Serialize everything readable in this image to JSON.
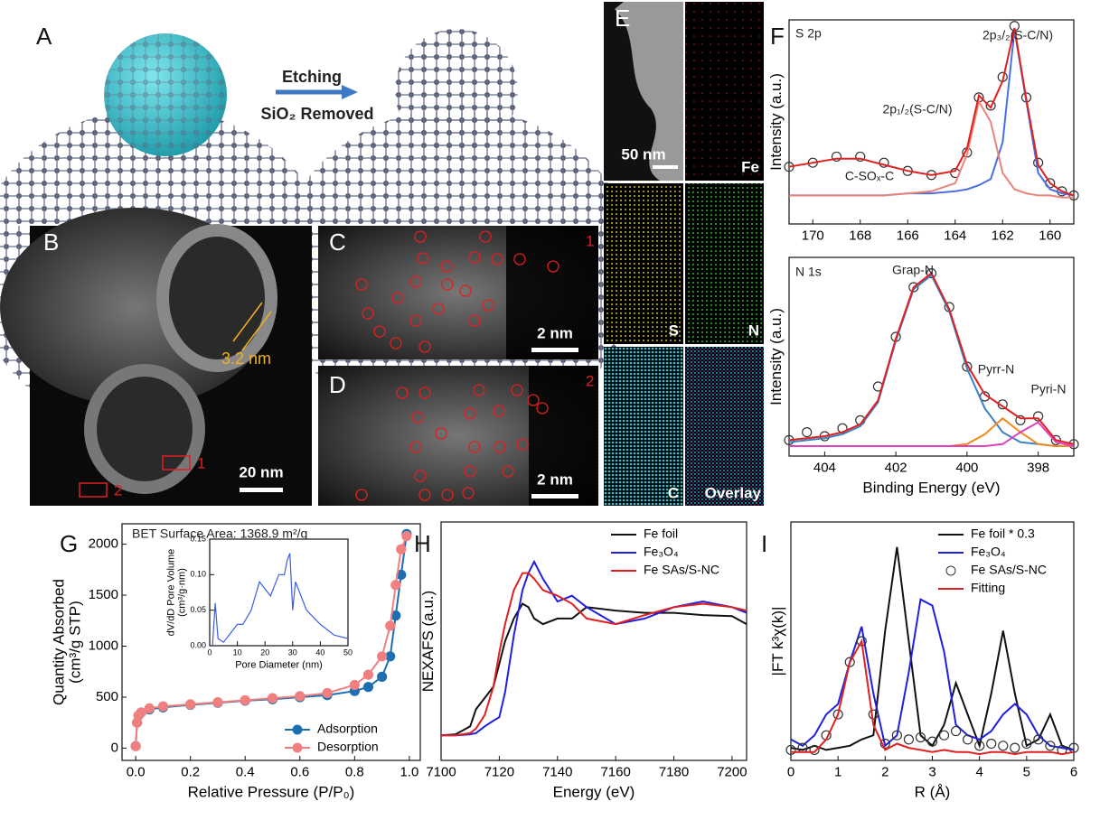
{
  "images": {
    "A": {
      "label": "A",
      "etching": "Etching",
      "removed": "SiO₂ Removed"
    },
    "B": {
      "label": "B",
      "spacing": "3.2 nm",
      "scale": "20 nm",
      "region1": "1",
      "region2": "2"
    },
    "C": {
      "label": "C",
      "region": "1",
      "scale": "2 nm"
    },
    "D": {
      "label": "D",
      "region": "2",
      "scale": "2 nm"
    },
    "E": {
      "label": "E",
      "scale": "50 nm",
      "maps": [
        "Fe",
        "S",
        "N",
        "C",
        "Overlay"
      ]
    }
  },
  "chart_data": [
    {
      "type": "line",
      "panel": "F",
      "ylabel": "Intensity (a.u.)",
      "annotations": [
        "S 2p",
        "2p₃/₂(S-C/N)",
        "2p₁/₂(S-C/N)",
        "C-SOₓ-C"
      ],
      "xlim": [
        171,
        159
      ],
      "xticks": [
        170,
        168,
        166,
        164,
        162,
        160
      ],
      "ylim": [
        0,
        100
      ],
      "x": [
        171,
        170,
        169,
        168,
        167,
        166,
        165,
        164,
        163.5,
        163,
        162.5,
        162,
        161.5,
        161,
        160.5,
        160,
        159.5,
        159
      ],
      "series": [
        {
          "color": "#333333",
          "marker": "open",
          "line": false,
          "values": [
            28,
            30,
            33,
            33,
            30,
            26,
            24,
            25,
            35,
            62,
            58,
            72,
            97,
            62,
            30,
            20,
            16,
            14
          ]
        },
        {
          "color": "#4a6fe3",
          "marker": "none",
          "line": true,
          "values": [
            14,
            14,
            14,
            14,
            14,
            15,
            15,
            16,
            17,
            19,
            22,
            40,
            95,
            60,
            25,
            17,
            15,
            14
          ]
        },
        {
          "color": "#e8857a",
          "marker": "none",
          "line": true,
          "values": [
            14,
            14,
            14,
            14,
            14,
            15,
            16,
            20,
            34,
            60,
            50,
            25,
            17,
            15,
            14,
            14,
            13,
            13
          ]
        },
        {
          "color": "#e02020",
          "marker": "none",
          "line": true,
          "values": [
            28,
            30,
            32,
            32,
            29,
            26,
            24,
            26,
            37,
            63,
            57,
            70,
            96,
            61,
            29,
            20,
            16,
            14
          ]
        }
      ]
    },
    {
      "type": "line",
      "xlabel": "Binding Energy (eV)",
      "ylabel": "Intensity (a.u.)",
      "annotations": [
        "N 1s",
        "Grap-N",
        "Pyrr-N",
        "Pyri-N"
      ],
      "xlim": [
        405,
        397
      ],
      "xticks": [
        404,
        402,
        400,
        398
      ],
      "ylim": [
        0,
        100
      ],
      "x": [
        405,
        404.5,
        404,
        403.5,
        403,
        402.5,
        402,
        401.5,
        401,
        400.5,
        400,
        399.5,
        399,
        398.5,
        398,
        397.5,
        397
      ],
      "series": [
        {
          "color": "#333333",
          "marker": "open",
          "line": false,
          "values": [
            8,
            12,
            10,
            14,
            18,
            35,
            60,
            85,
            92,
            75,
            45,
            30,
            26,
            18,
            20,
            8,
            6
          ]
        },
        {
          "color": "#3b82c4",
          "marker": "none",
          "line": true,
          "values": [
            7,
            8,
            9,
            11,
            15,
            27,
            58,
            84,
            91,
            73,
            44,
            24,
            12,
            7,
            6,
            5,
            5
          ]
        },
        {
          "color": "#f08a1c",
          "marker": "none",
          "line": true,
          "values": [
            5,
            5,
            5,
            5,
            5,
            5,
            5,
            5,
            5,
            5,
            6,
            11,
            19,
            12,
            6,
            5,
            5
          ]
        },
        {
          "color": "#e040c0",
          "marker": "none",
          "line": true,
          "values": [
            5,
            5,
            5,
            5,
            5,
            5,
            5,
            5,
            5,
            5,
            5,
            5,
            6,
            12,
            17,
            7,
            5
          ]
        },
        {
          "color": "#e02020",
          "marker": "none",
          "line": true,
          "values": [
            8,
            9,
            10,
            12,
            16,
            28,
            59,
            85,
            92,
            74,
            46,
            31,
            25,
            19,
            19,
            8,
            6
          ]
        }
      ]
    },
    {
      "type": "line",
      "panel": "G",
      "xlabel": "Relative Pressure (P/P₀)",
      "ylabel": [
        "Quantity Absorbed",
        "(cm³/g STP)"
      ],
      "annotations": [
        "BET Surface Area: 1368.9 m²/g"
      ],
      "legend": "lower right",
      "xlim": [
        -0.05,
        1.04
      ],
      "xticks": [
        {
          "value": 0,
          "label": "0.0"
        },
        {
          "value": 0.2,
          "label": "0.2"
        },
        {
          "value": 0.4,
          "label": "0.4"
        },
        {
          "value": 0.6,
          "label": "0.6"
        },
        {
          "value": 0.8,
          "label": "0.8"
        },
        {
          "value": 1,
          "label": "1.0"
        }
      ],
      "ylim": [
        -120,
        2200
      ],
      "yticks": [
        0,
        500,
        1000,
        1500,
        2000
      ],
      "x": [
        0,
        0.005,
        0.01,
        0.02,
        0.05,
        0.1,
        0.2,
        0.3,
        0.4,
        0.5,
        0.6,
        0.7,
        0.8,
        0.85,
        0.9,
        0.93,
        0.95,
        0.97,
        0.99
      ],
      "series": [
        {
          "name": "Adsorption",
          "color": "#1f6fb0",
          "marker": "filled",
          "line": true,
          "values": [
            20,
            250,
            320,
            350,
            380,
            400,
            425,
            445,
            465,
            480,
            500,
            520,
            560,
            600,
            700,
            900,
            1300,
            1700,
            2100
          ]
        },
        {
          "name": "Desorption",
          "color": "#f08080",
          "marker": "filled",
          "line": true,
          "values": [
            20,
            250,
            320,
            350,
            390,
            410,
            430,
            450,
            470,
            490,
            510,
            540,
            620,
            720,
            900,
            1200,
            1600,
            1950,
            2080
          ]
        }
      ]
    },
    {
      "type": "line",
      "xlabel": "Pore Diameter (nm)",
      "ylabel": [
        "dV/dD Pore Volume",
        "(cm³/g·nm)"
      ],
      "xlim": [
        0,
        50
      ],
      "xticks": [
        0,
        10,
        20,
        30,
        40,
        50
      ],
      "ylim": [
        0,
        0.15
      ],
      "yticks": [
        {
          "value": 0,
          "label": "0.00"
        },
        {
          "value": 0.05,
          "label": "0.05"
        },
        {
          "value": 0.1,
          "label": "0.10"
        },
        {
          "value": 0.15,
          "label": "0.15"
        }
      ],
      "x": [
        1,
        2,
        3,
        5,
        8,
        10,
        12,
        15,
        18,
        20,
        22,
        25,
        27,
        28,
        29,
        30,
        31,
        33,
        35,
        40,
        45,
        50
      ],
      "series": [
        {
          "color": "#3b5fe0",
          "marker": "none",
          "line": true,
          "values": [
            0,
            0.06,
            0.01,
            0.005,
            0.02,
            0.03,
            0.03,
            0.05,
            0.09,
            0.08,
            0.07,
            0.1,
            0.1,
            0.12,
            0.13,
            0.05,
            0.09,
            0.07,
            0.05,
            0.03,
            0.015,
            0.01
          ]
        }
      ]
    },
    {
      "type": "line",
      "panel": "H",
      "xlabel": "Energy (eV)",
      "ylabel": "NEXAFS (a.u.)",
      "legend": "upper right",
      "xlim": [
        7100,
        7205
      ],
      "xticks": [
        7100,
        7120,
        7140,
        7160,
        7180,
        7200
      ],
      "ylim": [
        -0.2,
        1.9
      ],
      "x": [
        7100,
        7105,
        7110,
        7112,
        7115,
        7118,
        7120,
        7122,
        7125,
        7128,
        7130,
        7132,
        7135,
        7140,
        7145,
        7150,
        7160,
        7170,
        7180,
        7190,
        7200,
        7205
      ],
      "series": [
        {
          "name": "Fe foil",
          "color": "#111111",
          "marker": "none",
          "line": true,
          "values": [
            0.02,
            0.03,
            0.1,
            0.25,
            0.35,
            0.45,
            0.65,
            0.85,
            1.05,
            1.18,
            1.15,
            1.05,
            1.0,
            1.05,
            1.05,
            1.15,
            1.12,
            1.1,
            1.1,
            1.08,
            1.07,
            1.0
          ]
        },
        {
          "name": "Fe₃O₄",
          "color": "#2020e0",
          "marker": "none",
          "line": true,
          "values": [
            0.02,
            0.02,
            0.03,
            0.04,
            0.1,
            0.15,
            0.18,
            0.4,
            0.9,
            1.3,
            1.45,
            1.55,
            1.4,
            1.2,
            1.25,
            1.15,
            1.0,
            1.05,
            1.15,
            1.2,
            1.15,
            1.1
          ]
        },
        {
          "name": "Fe SAs/S-NC",
          "color": "#e02020",
          "marker": "none",
          "line": true,
          "values": [
            0.02,
            0.02,
            0.04,
            0.08,
            0.2,
            0.45,
            0.75,
            1.0,
            1.3,
            1.45,
            1.45,
            1.4,
            1.3,
            1.25,
            1.18,
            1.05,
            1.0,
            1.08,
            1.15,
            1.18,
            1.15,
            1.12
          ]
        }
      ]
    },
    {
      "type": "line",
      "panel": "I",
      "xlabel": "R (Å)",
      "ylabel": "|FT k³χ(k)|",
      "legend": "upper right",
      "xlim": [
        0,
        6
      ],
      "xticks": [
        0,
        1,
        2,
        3,
        4,
        5,
        6
      ],
      "ylim": [
        -0.02,
        1.12
      ],
      "x": [
        0,
        0.25,
        0.5,
        0.75,
        1,
        1.25,
        1.5,
        1.75,
        2,
        2.25,
        2.5,
        2.75,
        3,
        3.25,
        3.5,
        3.75,
        4,
        4.25,
        4.5,
        4.75,
        5,
        5.25,
        5.5,
        5.75,
        6
      ],
      "series": [
        {
          "name": "Fe foil * 0.3",
          "color": "#111111",
          "marker": "none",
          "line": true,
          "values": [
            0.04,
            0.03,
            0.05,
            0.03,
            0.04,
            0.05,
            0.08,
            0.1,
            0.6,
            1.0,
            0.55,
            0.1,
            0.05,
            0.15,
            0.35,
            0.2,
            0.05,
            0.3,
            0.6,
            0.3,
            0.05,
            0.08,
            0.2,
            0.05,
            0.03
          ]
        },
        {
          "name": "Fe₃O₄",
          "color": "#2020e0",
          "marker": "none",
          "line": true,
          "values": [
            0.08,
            0.05,
            0.1,
            0.2,
            0.25,
            0.45,
            0.62,
            0.3,
            0.05,
            0.1,
            0.4,
            0.75,
            0.72,
            0.5,
            0.15,
            0.1,
            0.08,
            0.12,
            0.2,
            0.25,
            0.2,
            0.1,
            0.05,
            0.04,
            0.03
          ]
        },
        {
          "name": "Fe SAs/S-NC",
          "color": "#333333",
          "marker": "open",
          "line": false,
          "values": [
            0.03,
            0.04,
            0.03,
            0.1,
            0.2,
            0.45,
            0.55,
            0.2,
            0.06,
            0.1,
            0.08,
            0.09,
            0.07,
            0.1,
            0.12,
            0.08,
            0.05,
            0.06,
            0.05,
            0.04,
            0.06,
            0.08,
            0.05,
            0.03,
            0.04
          ]
        },
        {
          "name": "Fitting",
          "color": "#e02020",
          "marker": "none",
          "line": true,
          "values": [
            0.02,
            0.02,
            0.02,
            0.08,
            0.2,
            0.45,
            0.55,
            0.15,
            0.03,
            0.06,
            0.04,
            0.03,
            0.02,
            0.03,
            0.02,
            0.02,
            0.01,
            0.02,
            0.02,
            0.01,
            0.02,
            0.02,
            0.02,
            0.01,
            0.02
          ]
        }
      ]
    }
  ]
}
